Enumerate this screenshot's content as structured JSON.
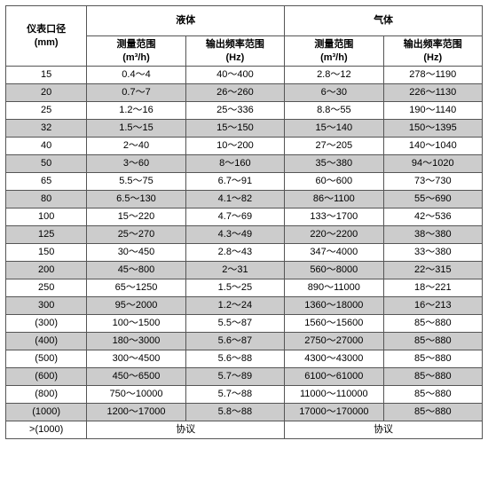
{
  "table": {
    "header": {
      "col0_line1": "仪表口径",
      "col0_line2": "(mm)",
      "group1": "液体",
      "group2": "气体",
      "sub_meas_line1": "测量范围",
      "sub_meas_line2": "(m³/h)",
      "sub_freq_line1": "输出频率范围",
      "sub_freq_line2": "(Hz)"
    },
    "rows": [
      {
        "alt": false,
        "c0": "15",
        "c1": "0.4～4",
        "c2": "40～400",
        "c3": "2.8～12",
        "c4": "278～1190"
      },
      {
        "alt": true,
        "c0": "20",
        "c1": "0.7～7",
        "c2": "26～260",
        "c3": "6～30",
        "c4": "226～1130"
      },
      {
        "alt": false,
        "c0": "25",
        "c1": "1.2～16",
        "c2": "25～336",
        "c3": "8.8～55",
        "c4": "190～1140"
      },
      {
        "alt": true,
        "c0": "32",
        "c1": "1.5～15",
        "c2": "15～150",
        "c3": "15～140",
        "c4": "150～1395"
      },
      {
        "alt": false,
        "c0": "40",
        "c1": "2～40",
        "c2": "10～200",
        "c3": "27～205",
        "c4": "140～1040"
      },
      {
        "alt": true,
        "c0": "50",
        "c1": "3～60",
        "c2": "8～160",
        "c3": "35～380",
        "c4": "94～1020"
      },
      {
        "alt": false,
        "c0": "65",
        "c1": "5.5～75",
        "c2": "6.7～91",
        "c3": "60～600",
        "c4": "73～730"
      },
      {
        "alt": true,
        "c0": "80",
        "c1": "6.5～130",
        "c2": "4.1～82",
        "c3": "86～1100",
        "c4": "55～690"
      },
      {
        "alt": false,
        "c0": "100",
        "c1": "15～220",
        "c2": "4.7～69",
        "c3": "133～1700",
        "c4": "42～536"
      },
      {
        "alt": true,
        "c0": "125",
        "c1": "25～270",
        "c2": "4.3～49",
        "c3": "220～2200",
        "c4": "38～380"
      },
      {
        "alt": false,
        "c0": "150",
        "c1": "30～450",
        "c2": "2.8～43",
        "c3": "347～4000",
        "c4": "33～380"
      },
      {
        "alt": true,
        "c0": "200",
        "c1": "45～800",
        "c2": "2～31",
        "c3": "560～8000",
        "c4": "22～315"
      },
      {
        "alt": false,
        "c0": "250",
        "c1": "65～1250",
        "c2": "1.5～25",
        "c3": "890～11000",
        "c4": "18～221"
      },
      {
        "alt": true,
        "c0": "300",
        "c1": "95～2000",
        "c2": "1.2～24",
        "c3": "1360～18000",
        "c4": "16～213"
      },
      {
        "alt": false,
        "c0": "(300)",
        "c1": "100～1500",
        "c2": "5.5～87",
        "c3": "1560～15600",
        "c4": "85～880"
      },
      {
        "alt": true,
        "c0": "(400)",
        "c1": "180～3000",
        "c2": "5.6～87",
        "c3": "2750～27000",
        "c4": "85～880"
      },
      {
        "alt": false,
        "c0": "(500)",
        "c1": "300～4500",
        "c2": "5.6～88",
        "c3": "4300～43000",
        "c4": "85～880"
      },
      {
        "alt": true,
        "c0": "(600)",
        "c1": "450～6500",
        "c2": "5.7～89",
        "c3": "6100～61000",
        "c4": "85～880"
      },
      {
        "alt": false,
        "c0": "(800)",
        "c1": "750～10000",
        "c2": "5.7～88",
        "c3": "11000～110000",
        "c4": "85～880"
      },
      {
        "alt": true,
        "c0": "(1000)",
        "c1": "1200～17000",
        "c2": "5.8～88",
        "c3": "17000～170000",
        "c4": "85～880"
      }
    ],
    "footer": {
      "c0": ">(1000)",
      "merged": "协议"
    }
  }
}
